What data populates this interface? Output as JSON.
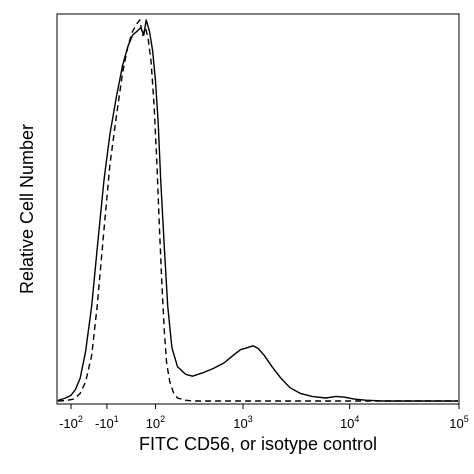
{
  "chart_data": {
    "type": "line",
    "title": "",
    "xlabel": "FITC CD56, or isotype control",
    "ylabel": "Relative Cell Number",
    "x_scale": "biexponential",
    "grid": false,
    "legend": "none",
    "xticks": [
      {
        "value": -100,
        "base": "-10",
        "exp": "2"
      },
      {
        "value": -10,
        "base": "-10",
        "exp": "1"
      },
      {
        "value": 100,
        "base": "10",
        "exp": "2"
      },
      {
        "value": 1000,
        "base": "10",
        "exp": "3"
      },
      {
        "value": 10000,
        "base": "10",
        "exp": "4"
      },
      {
        "value": 100000,
        "base": "10",
        "exp": "5"
      }
    ],
    "series": [
      {
        "style": "solid",
        "color": "#000000",
        "points": [
          [
            -200,
            0
          ],
          [
            -150,
            0.2
          ],
          [
            -120,
            0.8
          ],
          [
            -100,
            1.5
          ],
          [
            -85,
            3
          ],
          [
            -70,
            6
          ],
          [
            -55,
            13
          ],
          [
            -40,
            25
          ],
          [
            -28,
            40
          ],
          [
            -15,
            58
          ],
          [
            -5,
            70
          ],
          [
            5,
            80
          ],
          [
            15,
            88
          ],
          [
            25,
            93
          ],
          [
            35,
            96
          ],
          [
            45,
            97
          ],
          [
            55,
            98
          ],
          [
            63,
            96
          ],
          [
            70,
            100
          ],
          [
            80,
            97
          ],
          [
            90,
            92
          ],
          [
            100,
            84
          ],
          [
            110,
            73
          ],
          [
            120,
            58
          ],
          [
            135,
            40
          ],
          [
            150,
            25
          ],
          [
            170,
            14
          ],
          [
            200,
            9
          ],
          [
            250,
            7
          ],
          [
            300,
            6.5
          ],
          [
            400,
            7.5
          ],
          [
            500,
            8.5
          ],
          [
            650,
            10
          ],
          [
            800,
            12
          ],
          [
            950,
            13.5
          ],
          [
            1100,
            14
          ],
          [
            1250,
            14.5
          ],
          [
            1400,
            13.8
          ],
          [
            1600,
            12
          ],
          [
            1900,
            9
          ],
          [
            2300,
            6
          ],
          [
            2800,
            3.5
          ],
          [
            3500,
            2
          ],
          [
            4500,
            1.2
          ],
          [
            6000,
            0.8
          ],
          [
            7500,
            1.2
          ],
          [
            9000,
            1
          ],
          [
            11000,
            0.5
          ],
          [
            14000,
            0.2
          ],
          [
            20000,
            0
          ],
          [
            300000,
            0
          ]
        ]
      },
      {
        "style": "dashed",
        "color": "#000000",
        "points": [
          [
            -200,
            0
          ],
          [
            -120,
            0.1
          ],
          [
            -90,
            0.5
          ],
          [
            -70,
            2
          ],
          [
            -55,
            5
          ],
          [
            -40,
            12
          ],
          [
            -28,
            25
          ],
          [
            -15,
            45
          ],
          [
            -5,
            62
          ],
          [
            5,
            75
          ],
          [
            15,
            86
          ],
          [
            25,
            93
          ],
          [
            35,
            97
          ],
          [
            45,
            99
          ],
          [
            52,
            100
          ],
          [
            60,
            96
          ],
          [
            68,
            98
          ],
          [
            76,
            95
          ],
          [
            85,
            89
          ],
          [
            95,
            78
          ],
          [
            105,
            63
          ],
          [
            115,
            45
          ],
          [
            125,
            30
          ],
          [
            135,
            18
          ],
          [
            145,
            10
          ],
          [
            160,
            5
          ],
          [
            180,
            2
          ],
          [
            200,
            0.8
          ],
          [
            250,
            0.2
          ],
          [
            300,
            0
          ],
          [
            300000,
            0
          ]
        ]
      }
    ]
  }
}
